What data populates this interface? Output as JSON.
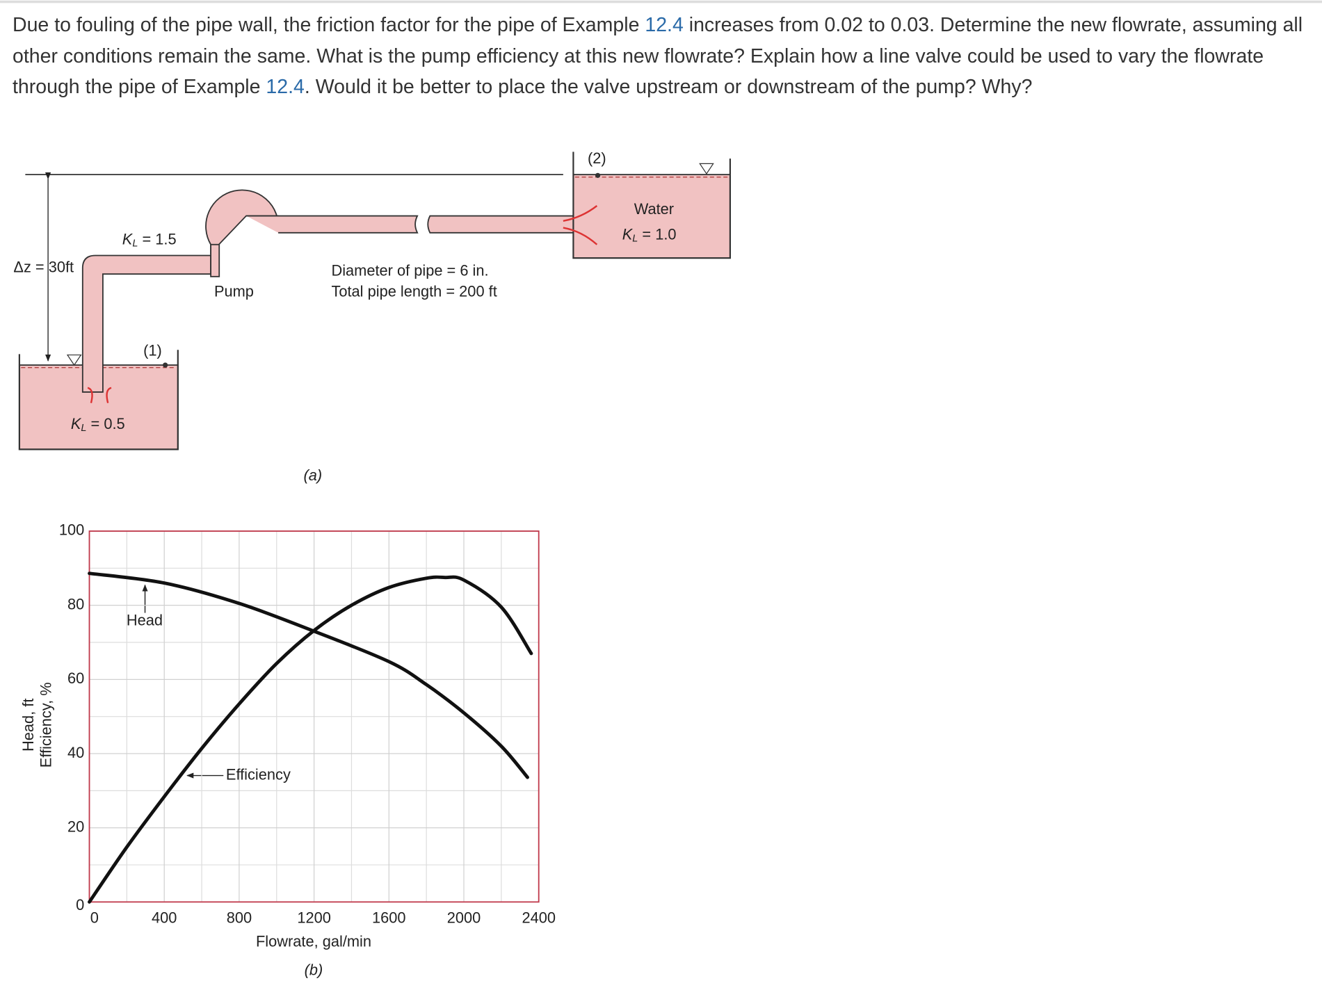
{
  "question": [
    "Due to fouling of the pipe wall, the friction factor for the pipe of Example ",
    "12.4",
    " increases from 0.02 to 0.03. Determine the new flowrate, assuming all other conditions remain the same. What is the pump efficiency at this new flowrate? Explain how a line valve could be used to vary the flowrate through the pipe of Example ",
    "12.4",
    ". Would it be better to place the valve upstream or downstream of the pump? Why?"
  ],
  "diagram": {
    "delta_z": "Δz = 30ft",
    "entrance_loss": {
      "symbol": "K",
      "subscript": "L",
      "rest": " = 0.5"
    },
    "elbow_loss": {
      "symbol": "K",
      "subscript": "L",
      "rest": " = 1.5"
    },
    "exit_loss": {
      "symbol": "K",
      "subscript": "L",
      "rest": " = 1.0"
    },
    "point_1": "(1)",
    "point_2": "(2)",
    "pump": "Pump",
    "water": "Water",
    "pipe_diameter": "Diameter of pipe = 6 in.",
    "pipe_length": "Total pipe length = 200 ft",
    "caption": "(a)"
  },
  "chart_data": {
    "type": "line",
    "x_label": "Flowrate, gal/min",
    "y_label": [
      "Head, ft",
      "Efficiency, %"
    ],
    "caption": "(b)",
    "xlim": [
      0,
      2400
    ],
    "xticks": [
      0,
      400,
      800,
      1200,
      1600,
      2000,
      2400
    ],
    "ylim": [
      0,
      100
    ],
    "yticks": [
      0,
      20,
      40,
      60,
      80,
      100
    ],
    "grid": true,
    "minor_grid": true,
    "frame_color": "#c0394b",
    "series": [
      {
        "name": "Head",
        "color": "#111111",
        "x": [
          0,
          400,
          800,
          1200,
          1600,
          1800,
          2000,
          2200,
          2340
        ],
        "values": [
          88.6,
          86,
          80.5,
          73,
          64.8,
          58.6,
          51,
          42,
          33.6
        ]
      },
      {
        "name": "Efficiency",
        "color": "#111111",
        "x": [
          0,
          200,
          400,
          600,
          800,
          1000,
          1200,
          1400,
          1600,
          1800,
          1900,
          2000,
          2200,
          2360
        ],
        "values": [
          0,
          14.8,
          28.4,
          41.4,
          53.4,
          64.3,
          73.2,
          80,
          84.8,
          87.3,
          87.5,
          86.8,
          79.5,
          67
        ]
      }
    ]
  }
}
